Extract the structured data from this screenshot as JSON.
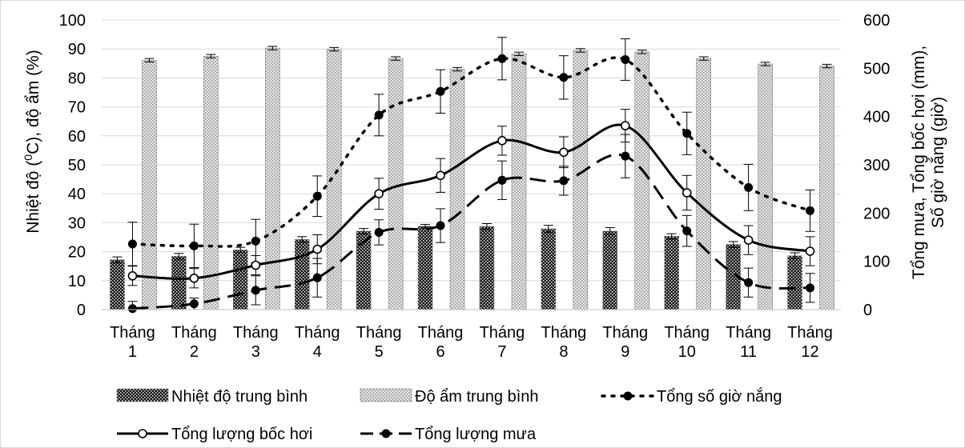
{
  "chart_data": {
    "type": "bar+line",
    "categories": [
      "Tháng 1",
      "Tháng 2",
      "Tháng 3",
      "Tháng 4",
      "Tháng 5",
      "Tháng 6",
      "Tháng 7",
      "Tháng 8",
      "Tháng 9",
      "Tháng 10",
      "Tháng 11",
      "Tháng 12"
    ],
    "category_lines": [
      [
        "Tháng",
        "1"
      ],
      [
        "Tháng",
        "2"
      ],
      [
        "Tháng",
        "3"
      ],
      [
        "Tháng",
        "4"
      ],
      [
        "Tháng",
        "5"
      ],
      [
        "Tháng",
        "6"
      ],
      [
        "Tháng",
        "7"
      ],
      [
        "Tháng",
        "8"
      ],
      [
        "Tháng",
        "9"
      ],
      [
        "Tháng",
        "10"
      ],
      [
        "Tháng",
        "11"
      ],
      [
        "Tháng",
        "12"
      ]
    ],
    "y_left": {
      "label": "Nhiệt độ (⁰C), độ ẩm (%)",
      "label_parts": [
        "Nhiệt độ (",
        "0",
        "C), độ ẩm (%)"
      ],
      "min": 0,
      "max": 100,
      "ticks": [
        0,
        10,
        20,
        30,
        40,
        50,
        60,
        70,
        80,
        90,
        100
      ]
    },
    "y_right": {
      "label_lines": [
        "Tổng mưa, Tổng bốc hơi (mm),",
        "Số giờ nắng (giờ)"
      ],
      "min": 0,
      "max": 600,
      "ticks": [
        0,
        100,
        200,
        300,
        400,
        500,
        600
      ]
    },
    "grid": true,
    "legend_position": "bottom",
    "series": [
      {
        "name": "Nhiệt độ trung bình",
        "kind": "bar",
        "axis": "left",
        "pattern": "dark-crosshatch",
        "values": [
          17.2,
          18.4,
          20.6,
          24.2,
          27.1,
          28.8,
          28.7,
          27.9,
          27.1,
          25.3,
          22.5,
          18.6
        ],
        "errors": [
          1.0,
          1.0,
          0.9,
          1.0,
          0.9,
          0.6,
          1.0,
          1.2,
          1.2,
          0.9,
          1.0,
          1.0
        ]
      },
      {
        "name": "Độ ẩm trung bình",
        "kind": "bar",
        "axis": "left",
        "pattern": "light-crosshatch",
        "values": [
          86.1,
          87.5,
          90.3,
          89.9,
          86.7,
          83.0,
          88.3,
          89.5,
          89.0,
          86.7,
          84.8,
          84.1
        ],
        "errors": [
          0.6,
          0.6,
          0.6,
          0.6,
          0.6,
          0.6,
          0.6,
          0.6,
          0.6,
          0.6,
          0.6,
          0.6
        ]
      },
      {
        "name": "Tổng số giờ nắng",
        "kind": "line",
        "axis": "right",
        "style": "dotted",
        "marker": "filled",
        "values": [
          136,
          132,
          142,
          235,
          403,
          452,
          520,
          481,
          518,
          365,
          253,
          205
        ],
        "errors": [
          45,
          45,
          45,
          42,
          43,
          45,
          44,
          45,
          43,
          44,
          48,
          43
        ]
      },
      {
        "name": "Tổng lượng bốc hơi",
        "kind": "line",
        "axis": "right",
        "style": "solid",
        "marker": "open",
        "values": [
          70,
          65,
          92,
          125,
          240,
          278,
          350,
          326,
          381,
          242,
          144,
          121
        ],
        "errors": [
          20,
          20,
          20,
          30,
          32,
          35,
          30,
          32,
          34,
          36,
          30,
          30
        ]
      },
      {
        "name": "Tổng lượng mưa",
        "kind": "line",
        "axis": "right",
        "style": "dashed",
        "marker": "filled",
        "values": [
          2,
          12,
          40,
          66,
          160,
          174,
          268,
          267,
          318,
          163,
          56,
          45
        ],
        "errors": [
          15,
          12,
          30,
          40,
          26,
          35,
          40,
          30,
          45,
          32,
          30,
          30
        ]
      }
    ]
  },
  "legend": {
    "row1": [
      "Nhiệt độ trung bình",
      "Độ ẩm trung bình",
      "Tổng số giờ nắng"
    ],
    "row2": [
      "Tổng lượng bốc hơi",
      "Tổng lượng mưa"
    ]
  }
}
